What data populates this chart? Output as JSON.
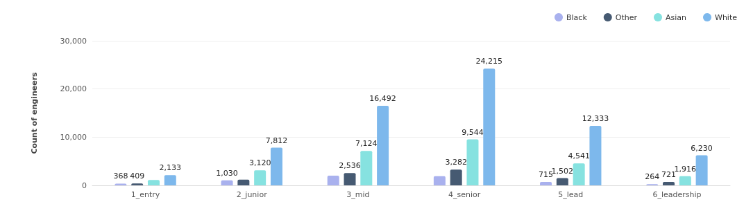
{
  "chart_data": {
    "type": "bar",
    "ylabel": "Count of engineers",
    "categories": [
      "1_entry",
      "2_junior",
      "3_mid",
      "4_senior",
      "5_lead",
      "6_leadership"
    ],
    "series": [
      {
        "name": "Black",
        "color": "#a9b1ee",
        "values": [
          368,
          1030,
          2000,
          1900,
          715,
          264
        ],
        "value_labels": [
          "368",
          "1,030",
          null,
          null,
          "715",
          "264"
        ]
      },
      {
        "name": "Other",
        "color": "#465a72",
        "values": [
          409,
          1200,
          2536,
          3282,
          1502,
          721
        ],
        "value_labels": [
          "409",
          null,
          "2,536",
          "3,282",
          "1,502",
          "721"
        ]
      },
      {
        "name": "Asian",
        "color": "#86e2e0",
        "values": [
          1100,
          3120,
          7124,
          9544,
          4541,
          1916
        ],
        "value_labels": [
          null,
          "3,120",
          "7,124",
          "9,544",
          "4,541",
          "1,916"
        ]
      },
      {
        "name": "White",
        "color": "#7db8ec",
        "values": [
          2133,
          7812,
          16492,
          24215,
          12333,
          6230
        ],
        "value_labels": [
          "2,133",
          "7,812",
          "16,492",
          "24,215",
          "12,333",
          "6,230"
        ]
      }
    ],
    "ylim": [
      0,
      30000
    ],
    "yticks": [
      0,
      {
        "value": 10000,
        "label": "10,000"
      },
      {
        "value": 20000,
        "label": "20,000"
      },
      {
        "value": 30000,
        "label": "30,000"
      }
    ],
    "grid": "y",
    "legend": "top right",
    "marker": "circle"
  }
}
